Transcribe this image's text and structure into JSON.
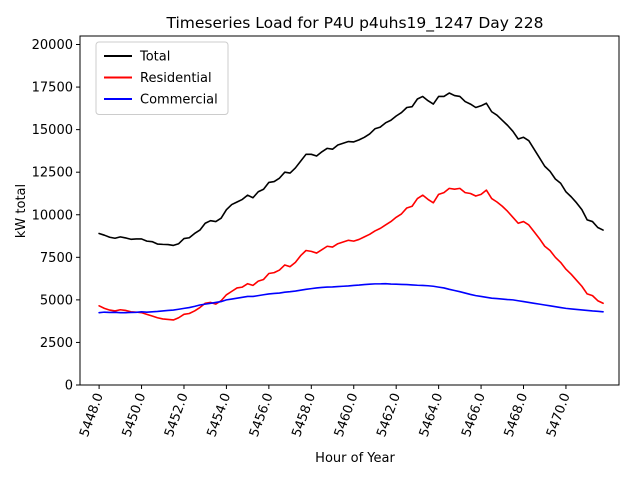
{
  "chart_data": {
    "type": "line",
    "title": "Timeseries Load for P4U p4uhs19_1247  Day 228",
    "xlabel": "Hour of Year",
    "ylabel": "kW total",
    "xlim": [
      5447.1,
      5472.5
    ],
    "ylim": [
      0,
      20500
    ],
    "xticks": [
      5448,
      5450,
      5452,
      5454,
      5456,
      5458,
      5460,
      5462,
      5464,
      5466,
      5468,
      5470
    ],
    "xtick_labels": [
      "5448.0",
      "5450.0",
      "5452.0",
      "5454.0",
      "5456.0",
      "5458.0",
      "5460.0",
      "5462.0",
      "5464.0",
      "5466.0",
      "5468.0",
      "5470.0"
    ],
    "yticks": [
      0,
      2500,
      5000,
      7500,
      10000,
      12500,
      15000,
      17500,
      20000
    ],
    "ytick_labels": [
      "0",
      "2500",
      "5000",
      "7500",
      "10000",
      "12500",
      "15000",
      "17500",
      "20000"
    ],
    "legend_position": "top-left",
    "x_start": 5448.0,
    "x_step": 0.25,
    "series": [
      {
        "name": "Total",
        "color": "#000000",
        "values": [
          8900,
          8800,
          8680,
          8620,
          8700,
          8640,
          8560,
          8580,
          8580,
          8450,
          8420,
          8280,
          8260,
          8250,
          8200,
          8300,
          8600,
          8650,
          8900,
          9100,
          9500,
          9650,
          9600,
          9800,
          10300,
          10600,
          10750,
          10900,
          11150,
          11000,
          11350,
          11500,
          11900,
          11950,
          12150,
          12500,
          12450,
          12750,
          13150,
          13550,
          13550,
          13450,
          13700,
          13900,
          13850,
          14100,
          14200,
          14300,
          14280,
          14400,
          14550,
          14750,
          15050,
          15150,
          15400,
          15550,
          15800,
          16000,
          16300,
          16350,
          16800,
          16950,
          16700,
          16500,
          16950,
          16950,
          17150,
          17000,
          16950,
          16650,
          16500,
          16300,
          16400,
          16550,
          16050,
          15850,
          15550,
          15250,
          14900,
          14450,
          14550,
          14350,
          13850,
          13350,
          12850,
          12550,
          12100,
          11850,
          11350,
          11050,
          10700,
          10300,
          9700,
          9600,
          9250,
          9100
        ]
      },
      {
        "name": "Residential",
        "color": "#ff0000",
        "values": [
          4650,
          4500,
          4400,
          4350,
          4420,
          4380,
          4300,
          4280,
          4250,
          4150,
          4050,
          3950,
          3880,
          3850,
          3820,
          3950,
          4150,
          4200,
          4350,
          4550,
          4800,
          4850,
          4750,
          4950,
          5300,
          5500,
          5700,
          5750,
          5950,
          5850,
          6100,
          6200,
          6550,
          6600,
          6750,
          7050,
          6950,
          7200,
          7600,
          7900,
          7850,
          7750,
          7950,
          8150,
          8100,
          8300,
          8400,
          8500,
          8450,
          8550,
          8700,
          8850,
          9050,
          9200,
          9400,
          9600,
          9850,
          10050,
          10400,
          10500,
          10950,
          11150,
          10900,
          10700,
          11200,
          11300,
          11550,
          11500,
          11550,
          11300,
          11250,
          11100,
          11200,
          11450,
          10950,
          10750,
          10500,
          10200,
          9850,
          9500,
          9600,
          9400,
          9000,
          8600,
          8150,
          7900,
          7500,
          7200,
          6800,
          6500,
          6150,
          5800,
          5350,
          5250,
          4950,
          4800
        ]
      },
      {
        "name": "Commercial",
        "color": "#0000ff",
        "values": [
          4250,
          4280,
          4260,
          4270,
          4250,
          4250,
          4260,
          4270,
          4300,
          4280,
          4300,
          4320,
          4350,
          4380,
          4400,
          4450,
          4500,
          4550,
          4620,
          4700,
          4750,
          4800,
          4850,
          4900,
          5000,
          5050,
          5100,
          5150,
          5200,
          5200,
          5250,
          5300,
          5350,
          5380,
          5400,
          5450,
          5480,
          5520,
          5570,
          5620,
          5660,
          5700,
          5730,
          5750,
          5760,
          5780,
          5800,
          5820,
          5850,
          5870,
          5900,
          5920,
          5940,
          5940,
          5950,
          5930,
          5920,
          5910,
          5900,
          5880,
          5860,
          5850,
          5830,
          5800,
          5750,
          5700,
          5620,
          5550,
          5480,
          5400,
          5320,
          5250,
          5200,
          5150,
          5100,
          5080,
          5050,
          5020,
          5000,
          4950,
          4900,
          4850,
          4800,
          4750,
          4700,
          4650,
          4600,
          4550,
          4500,
          4470,
          4440,
          4410,
          4380,
          4350,
          4330,
          4300
        ]
      }
    ]
  }
}
